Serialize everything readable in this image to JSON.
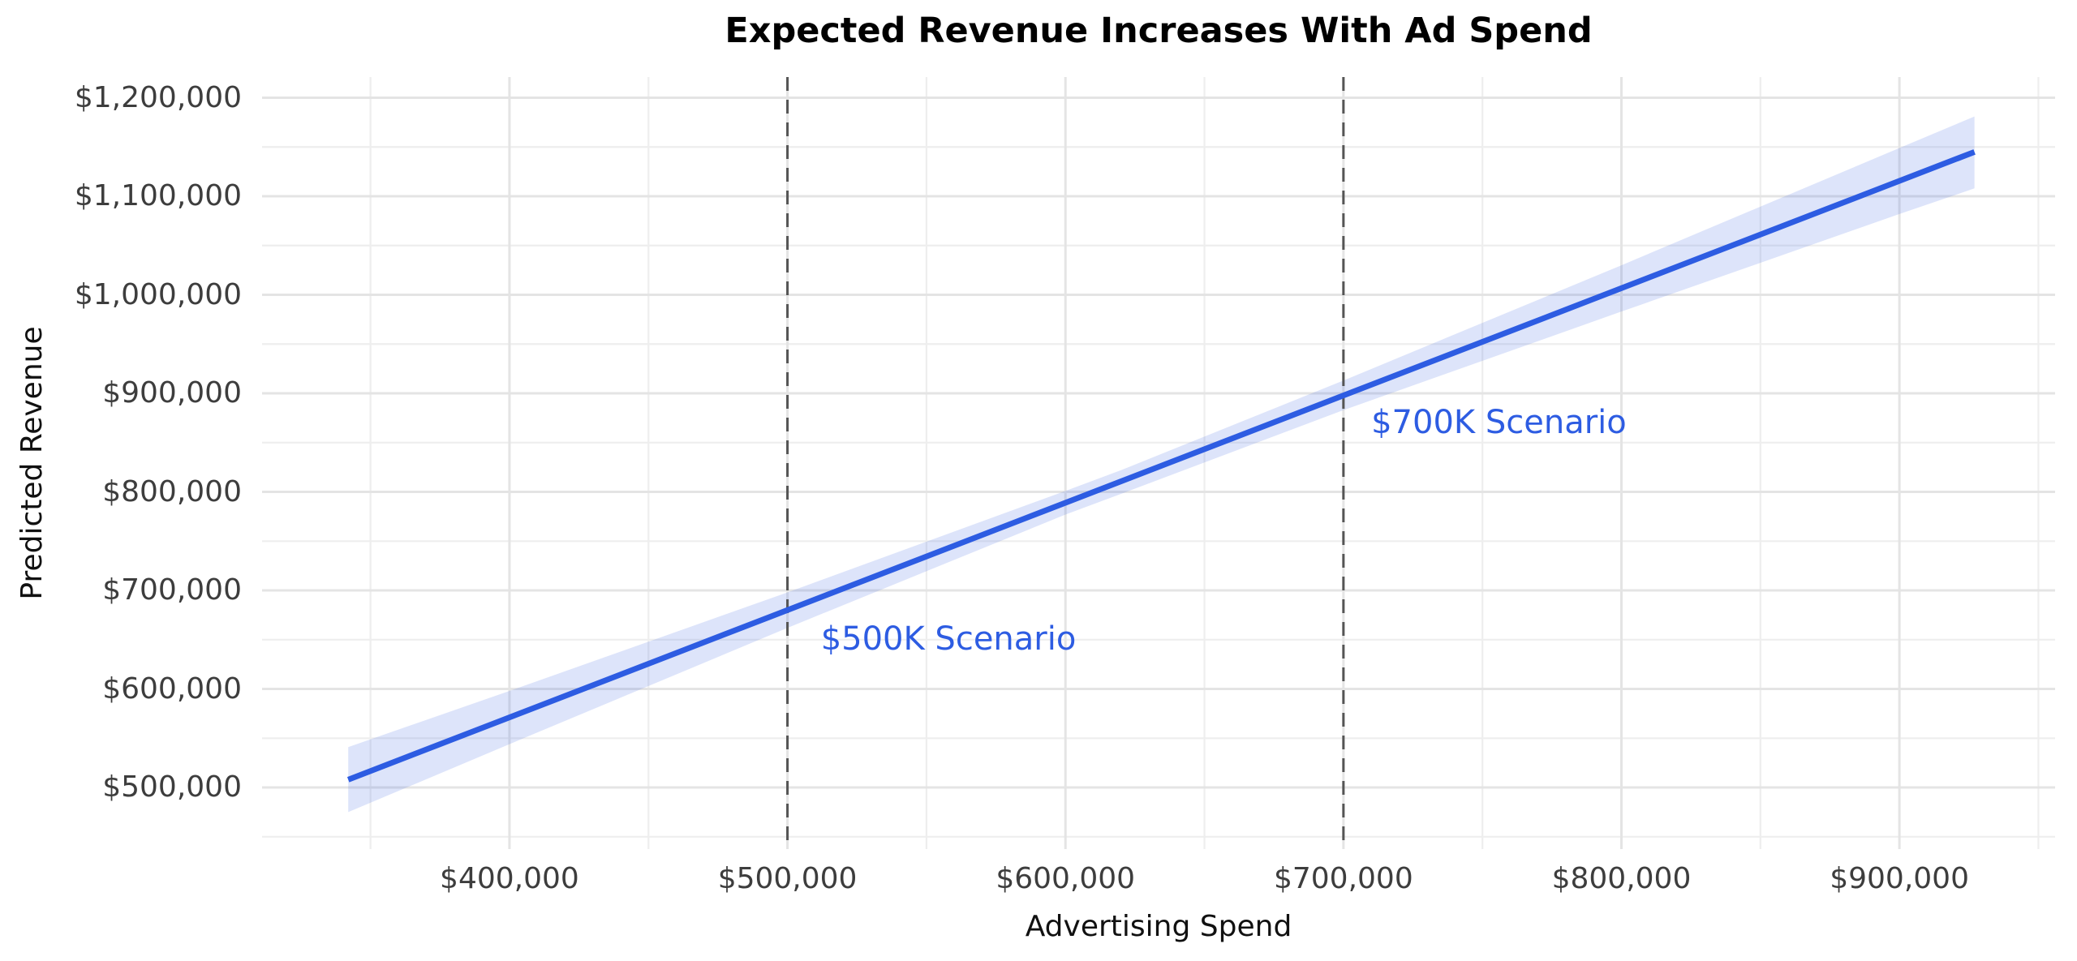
{
  "chart_data": {
    "type": "line",
    "title": "Expected Revenue Increases With Ad Spend",
    "xlabel": "Advertising Spend",
    "ylabel": "Predicted Revenue",
    "x_range": [
      311000,
      956000
    ],
    "y_range": [
      437500,
      1221000
    ],
    "grid": true,
    "legend_position": "none",
    "x_ticks": [
      {
        "value": 400000,
        "label": "$400,000"
      },
      {
        "value": 500000,
        "label": "$500,000"
      },
      {
        "value": 600000,
        "label": "$600,000"
      },
      {
        "value": 700000,
        "label": "$700,000"
      },
      {
        "value": 800000,
        "label": "$800,000"
      },
      {
        "value": 900000,
        "label": "$900,000"
      }
    ],
    "x_minor_ticks": [
      350000,
      450000,
      550000,
      650000,
      750000,
      850000,
      950000
    ],
    "y_ticks": [
      {
        "value": 1200000,
        "label": "$1,200,000"
      },
      {
        "value": 1100000,
        "label": "$1,100,000"
      },
      {
        "value": 1000000,
        "label": "$1,000,000"
      },
      {
        "value": 900000,
        "label": "$900,000"
      },
      {
        "value": 800000,
        "label": "$800,000"
      },
      {
        "value": 700000,
        "label": "$700,000"
      },
      {
        "value": 600000,
        "label": "$600,000"
      },
      {
        "value": 500000,
        "label": "$500,000"
      }
    ],
    "y_minor_ticks": [
      1150000,
      1050000,
      950000,
      850000,
      750000,
      650000,
      550000,
      450000
    ],
    "regression_line": {
      "x": [
        342000,
        927000
      ],
      "y": [
        508000,
        1145000
      ]
    },
    "confidence_band": {
      "x": [
        342000,
        400000,
        500000,
        600000,
        620000,
        700000,
        800000,
        900000,
        927000
      ],
      "upper": [
        541000,
        598000,
        698000,
        801000,
        822000,
        913000,
        1030000,
        1149000,
        1181000
      ],
      "lower": [
        475000,
        544000,
        662000,
        777000,
        798000,
        883000,
        983000,
        1082000,
        1108000
      ]
    },
    "scenarios": [
      {
        "x": 500000,
        "label": "$500K Scenario",
        "predicted_revenue": 680000,
        "text_x": 512000,
        "text_y": 651000
      },
      {
        "x": 700000,
        "label": "$700K Scenario",
        "predicted_revenue": 898000,
        "text_x": 710000,
        "text_y": 870000
      }
    ],
    "colors": {
      "line": "#2d5ce2",
      "band": "rgba(65,105,225,0.18)",
      "scenario_line": "#555555",
      "annotation": "#2d5ce2",
      "grid_major": "#e4e4e4",
      "grid_minor": "#eeeeee",
      "tick": "#3d3d3d",
      "axis_label": "#111111",
      "title": "#000000",
      "background": "#ffffff"
    }
  }
}
